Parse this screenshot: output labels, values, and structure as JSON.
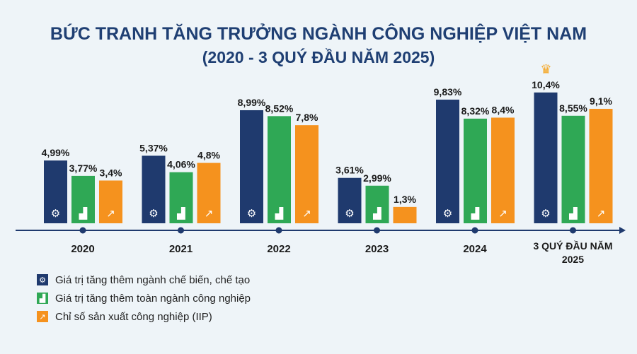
{
  "chart_data": {
    "type": "bar",
    "title": "BỨC TRANH TĂNG TRƯỞNG NGÀNH CÔNG NGHIỆP VIỆT NAM",
    "subtitle": "(2020 - 3 QUÝ ĐẦU NĂM 2025)",
    "categories": [
      "2020",
      "2021",
      "2022",
      "2023",
      "2024",
      "3 QUÝ ĐẦU NĂM 2025"
    ],
    "series": [
      {
        "name": "Giá trị tăng thêm ngành chế biến, chế tạo",
        "color": "#1f3a6e",
        "icon": "gear-icon",
        "values": [
          4.99,
          5.37,
          8.99,
          3.61,
          9.83,
          10.4
        ],
        "labels": [
          "4,99%",
          "5,37%",
          "8,99%",
          "3,61%",
          "9,83%",
          "10,4%"
        ]
      },
      {
        "name": "Giá trị tăng thêm toàn ngành công nghiệp",
        "color": "#2fa855",
        "icon": "factory-icon",
        "values": [
          3.77,
          4.06,
          8.52,
          2.99,
          8.32,
          8.55
        ],
        "labels": [
          "3,77%",
          "4,06%",
          "8,52%",
          "2,99%",
          "8,32%",
          "8,55%"
        ]
      },
      {
        "name": "Chỉ số sản xuất công nghiệp (IIP)",
        "color": "#f5921e",
        "icon": "growth-chart-icon",
        "values": [
          3.4,
          4.8,
          7.8,
          1.3,
          8.4,
          9.1
        ],
        "labels": [
          "3,4%",
          "4,8%",
          "7,8%",
          "1,3%",
          "8,4%",
          "9,1%"
        ]
      }
    ],
    "ylim": [
      0,
      11
    ],
    "legend": "bottom-left"
  }
}
